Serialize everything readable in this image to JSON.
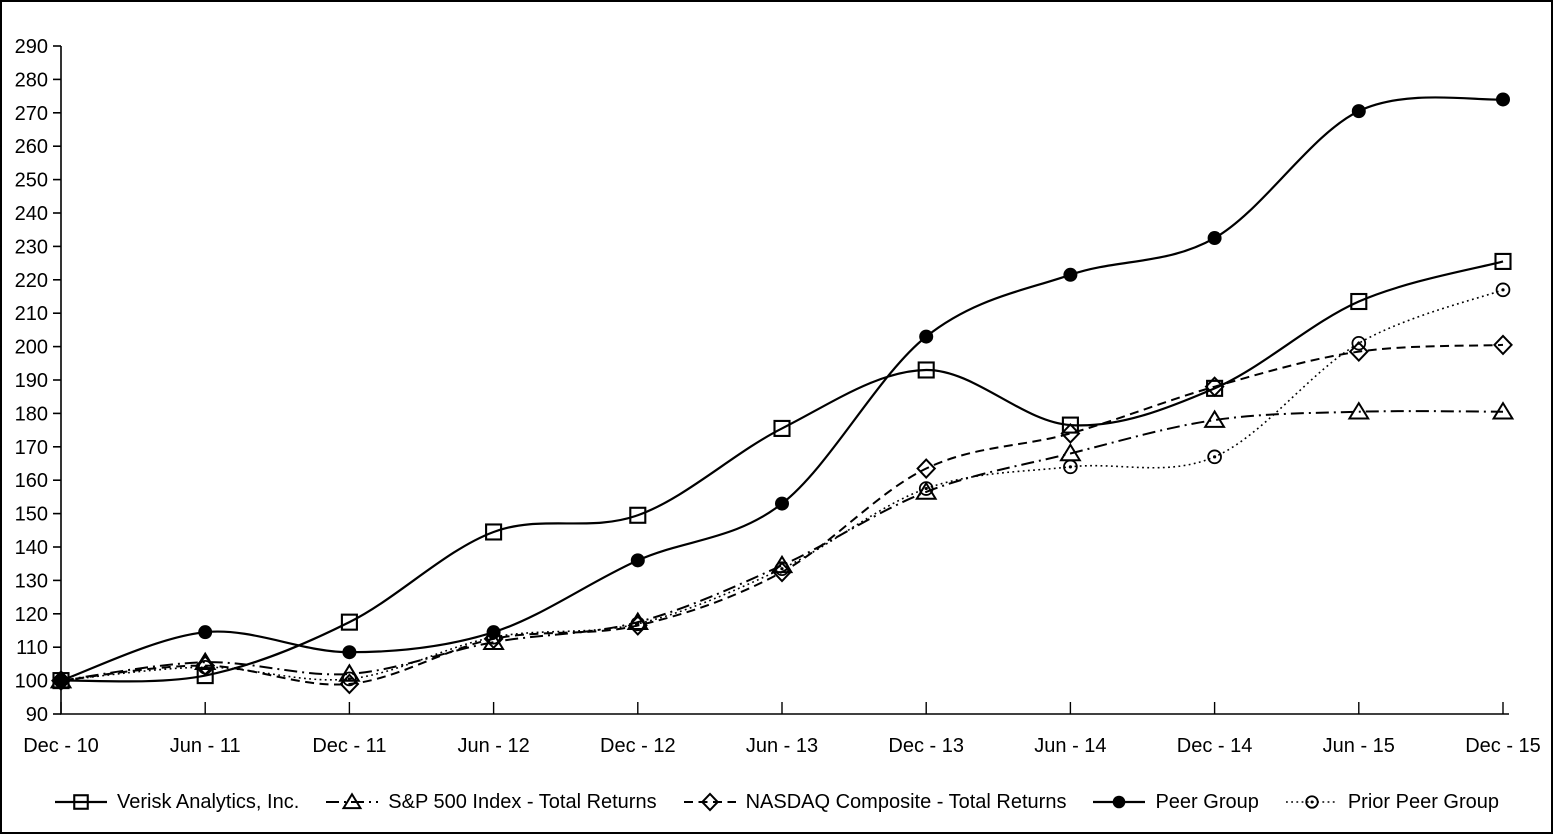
{
  "figure": {
    "background": "#ffffff",
    "border_color": "#000000",
    "ink_color": "#000000"
  },
  "chart_data": {
    "type": "line",
    "title": "",
    "xlabel": "",
    "ylabel": "",
    "grid": false,
    "smooth_lines": true,
    "legend_position": "bottom",
    "ylim": [
      90,
      290
    ],
    "ytick_step": 10,
    "ytick_labels": [
      "90",
      "100",
      "110",
      "120",
      "130",
      "140",
      "150",
      "160",
      "170",
      "180",
      "190",
      "200",
      "210",
      "220",
      "230",
      "240",
      "250",
      "260",
      "270",
      "280",
      "290"
    ],
    "categories": [
      "Dec - 10",
      "Jun - 11",
      "Dec - 11",
      "Jun - 12",
      "Dec - 12",
      "Jun - 13",
      "Dec - 13",
      "Jun - 14",
      "Dec - 14",
      "Jun - 15",
      "Dec - 15"
    ],
    "series": [
      {
        "name": "Verisk Analytics, Inc.",
        "marker": "open-square",
        "line": "solid",
        "color": "#000000",
        "values": [
          100,
          101.5,
          117.5,
          144.5,
          149.5,
          175.5,
          193,
          176.5,
          187.5,
          213.5,
          225.5
        ]
      },
      {
        "name": "S&P 500 Index - Total Returns",
        "marker": "open-triangle",
        "line": "dash-dot",
        "color": "#000000",
        "values": [
          100,
          105.5,
          102,
          111.5,
          117.5,
          134.5,
          156.5,
          168,
          178,
          180.5,
          180.5
        ]
      },
      {
        "name": "NASDAQ Composite - Total Returns",
        "marker": "open-diamond",
        "line": "dashed",
        "color": "#000000",
        "values": [
          100,
          104.5,
          99,
          112.5,
          116.5,
          132.5,
          163.5,
          174,
          188,
          198.5,
          200.5
        ]
      },
      {
        "name": "Peer Group",
        "marker": "filled-circle",
        "line": "solid",
        "color": "#000000",
        "values": [
          100,
          114.5,
          108.5,
          114.5,
          136,
          153,
          203,
          221.5,
          232.5,
          270.5,
          274
        ]
      },
      {
        "name": "Prior Peer Group",
        "marker": "circled-dot",
        "line": "dotted",
        "color": "#000000",
        "values": [
          100,
          104,
          100.5,
          113,
          117,
          133.5,
          157.5,
          164,
          167,
          201,
          217
        ]
      }
    ]
  }
}
